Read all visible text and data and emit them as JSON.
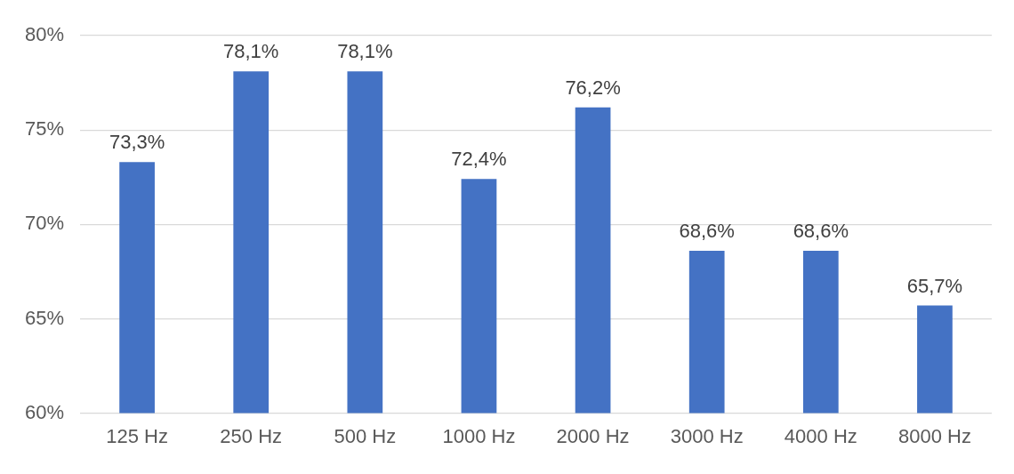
{
  "chart_data": {
    "type": "bar",
    "categories": [
      "125 Hz",
      "250 Hz",
      "500 Hz",
      "1000 Hz",
      "2000 Hz",
      "3000 Hz",
      "4000 Hz",
      "8000 Hz"
    ],
    "values": [
      73.3,
      78.1,
      78.1,
      72.4,
      76.2,
      68.6,
      68.6,
      65.7
    ],
    "value_labels": [
      "73,3%",
      "78,1%",
      "78,1%",
      "72,4%",
      "76,2%",
      "68,6%",
      "68,6%",
      "65,7%"
    ],
    "color": "#4472c4",
    "ylim": [
      60,
      80
    ],
    "yticks": [
      {
        "value": 60,
        "label": "60%"
      },
      {
        "value": 65,
        "label": "65%"
      },
      {
        "value": 70,
        "label": "70%"
      },
      {
        "value": 75,
        "label": "75%"
      },
      {
        "value": 80,
        "label": "80%"
      }
    ],
    "grid": "y",
    "legend": false
  }
}
